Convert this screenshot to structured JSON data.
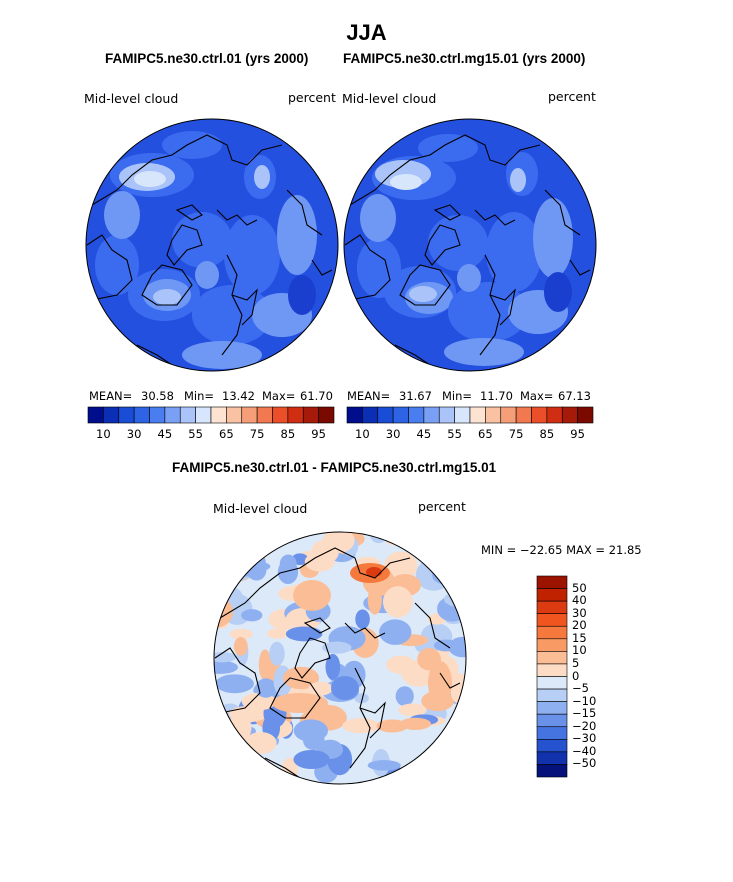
{
  "page": {
    "title": "JJA"
  },
  "panels": [
    {
      "id": "ctrl",
      "header": "FAMIPC5.ne30.ctrl.01 (yrs 2000)",
      "field_label": "Mid-level cloud",
      "units": "percent",
      "stats": {
        "mean_label": "MEAN=",
        "mean": "30.58",
        "min_label": "Min=",
        "min": "13.42",
        "max_label": "Max=",
        "max": "61.70"
      }
    },
    {
      "id": "mg15",
      "header": "FAMIPC5.ne30.ctrl.mg15.01 (yrs 2000)",
      "field_label": "Mid-level cloud",
      "units": "percent",
      "stats": {
        "mean_label": "MEAN=",
        "mean": "31.67",
        "min_label": "Min=",
        "min": "11.70",
        "max_label": "Max=",
        "max": "67.13"
      }
    }
  ],
  "abs_colorbar": {
    "colors": [
      "#000d8c",
      "#0a2fb5",
      "#1a4dd6",
      "#2e63e6",
      "#4a7df0",
      "#7aa0f5",
      "#aac4fa",
      "#d7e6fc",
      "#fde4d2",
      "#f9c2a2",
      "#f59e78",
      "#f2784f",
      "#ea4f2a",
      "#cf2e12",
      "#a51a08",
      "#7a0a00"
    ],
    "tick_labels": [
      "10",
      "30",
      "45",
      "55",
      "65",
      "75",
      "85",
      "95"
    ]
  },
  "diff_panel": {
    "header": "FAMIPC5.ne30.ctrl.01 - FAMIPC5.ne30.ctrl.mg15.01",
    "field_label": "Mid-level cloud",
    "units": "percent",
    "minmax_text": "MIN = −22.65 MAX =  21.85"
  },
  "diff_colorbar": {
    "colors": [
      "#9c1400",
      "#c02200",
      "#dc3a10",
      "#f0551f",
      "#f5793c",
      "#f89a63",
      "#fbbd96",
      "#fddcc6",
      "#dce9f8",
      "#b7cef5",
      "#8fb0f0",
      "#6a91ea",
      "#4574e0",
      "#2552cf",
      "#1232ad",
      "#04127a"
    ],
    "tick_labels": [
      "50",
      "40",
      "30",
      "20",
      "15",
      "10",
      "5",
      "0",
      "−5",
      "−10",
      "−15",
      "−20",
      "−30",
      "−40",
      "−50"
    ]
  },
  "map_colors": {
    "ctrl": {
      "base": "#2450df",
      "mid": "#3b6cf0",
      "light": "#6f98f5",
      "lighter": "#aac4fa",
      "whitish": "#d8e6fc",
      "dark": "#1a3fcf"
    },
    "diff": {
      "base": "#dce9f8",
      "blue1": "#b7cef5",
      "blue2": "#8fb0f0",
      "blue3": "#6a91ea",
      "red1": "#fddcc6",
      "red2": "#fbbd96",
      "red3": "#f5793c",
      "red4": "#dc3a10"
    }
  }
}
